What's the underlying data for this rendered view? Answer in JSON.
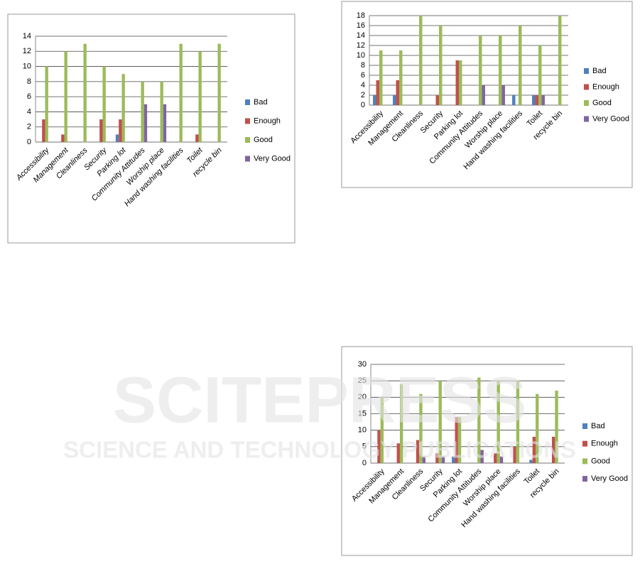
{
  "chart_data": [
    {
      "type": "bar",
      "categories": [
        "Accessibility",
        "Management",
        "Cleanliness",
        "Security",
        "Parking lot",
        "Community Attitudes",
        "Worship place",
        "Hand washing facilities",
        "Toilet",
        "recycle bin"
      ],
      "series": [
        {
          "name": "Bad",
          "color": "#4f81bd",
          "values": [
            0,
            0,
            0,
            0,
            1,
            0,
            0,
            0,
            0,
            0
          ]
        },
        {
          "name": "Enough",
          "color": "#c0504d",
          "values": [
            3,
            1,
            0,
            3,
            3,
            0,
            0,
            0,
            1,
            0
          ]
        },
        {
          "name": "Good",
          "color": "#9bbb59",
          "values": [
            10,
            12,
            13,
            10,
            9,
            8,
            8,
            13,
            12,
            13
          ]
        },
        {
          "name": "Very Good",
          "color": "#8064a2",
          "values": [
            0,
            0,
            0,
            0,
            0,
            5,
            5,
            0,
            0,
            0
          ]
        }
      ],
      "ylim": [
        0,
        14
      ],
      "yticks": [
        0,
        2,
        4,
        6,
        8,
        10,
        12,
        14
      ],
      "grid": true,
      "legend": "right"
    },
    {
      "type": "bar",
      "categories": [
        "Accessibility",
        "Management",
        "Cleanliness",
        "Security",
        "Parking lot",
        "Community Attitudes",
        "Worship place",
        "Hand washing facilities",
        "Toilet",
        "recycle bin"
      ],
      "series": [
        {
          "name": "Bad",
          "color": "#4f81bd",
          "values": [
            2,
            2,
            0,
            0,
            0,
            0,
            0,
            2,
            2,
            0
          ]
        },
        {
          "name": "Enough",
          "color": "#c0504d",
          "values": [
            5,
            5,
            0,
            2,
            9,
            0,
            0,
            0,
            2,
            0
          ]
        },
        {
          "name": "Good",
          "color": "#9bbb59",
          "values": [
            11,
            11,
            18,
            16,
            9,
            14,
            14,
            16,
            12,
            18
          ]
        },
        {
          "name": "Very Good",
          "color": "#8064a2",
          "values": [
            0,
            0,
            0,
            0,
            0,
            4,
            4,
            0,
            2,
            0
          ]
        }
      ],
      "ylim": [
        0,
        18
      ],
      "yticks": [
        0,
        2,
        4,
        6,
        8,
        10,
        12,
        14,
        16,
        18
      ],
      "grid": true,
      "legend": "right"
    },
    {
      "type": "bar",
      "categories": [
        "Accessibility",
        "Management",
        "Cleanliness",
        "Security",
        "Parking lot",
        "Community Attitudes",
        "Worship place",
        "Hand washing facilities",
        "Toilet",
        "recycle bin"
      ],
      "series": [
        {
          "name": "Bad",
          "color": "#4f81bd",
          "values": [
            0,
            0,
            0,
            0,
            2,
            0,
            0,
            0,
            1,
            0
          ]
        },
        {
          "name": "Enough",
          "color": "#c0504d",
          "values": [
            10,
            6,
            7,
            3,
            14,
            0,
            3,
            5,
            8,
            8
          ]
        },
        {
          "name": "Good",
          "color": "#9bbb59",
          "values": [
            20,
            24,
            21,
            25,
            14,
            26,
            25,
            25,
            21,
            22
          ]
        },
        {
          "name": "Very Good",
          "color": "#8064a2",
          "values": [
            0,
            0,
            2,
            2,
            0,
            4,
            2,
            0,
            0,
            0
          ]
        }
      ],
      "ylim": [
        0,
        30
      ],
      "yticks": [
        0,
        5,
        10,
        15,
        20,
        25,
        30
      ],
      "grid": true,
      "legend": "right"
    }
  ],
  "watermark": {
    "title": "SCITEPRESS",
    "subtitle": "SCIENCE AND TECHNOLOGY PUBLICATIONS"
  }
}
